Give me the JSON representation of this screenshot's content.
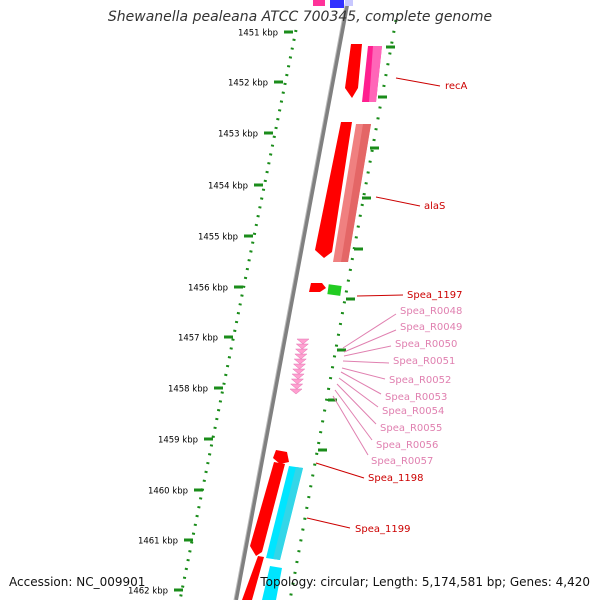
{
  "title": "Shewanella pealeana ATCC 700345, complete genome",
  "accession": "Accession: NC_009901",
  "summary": "Topology: circular; Length: 5,174,581 bp; Genes: 4,420",
  "colors": {
    "ruler_tick": "#1a8c1a",
    "backbone": "#808080",
    "label_red": "#cc0000",
    "label_pink": "#e080b0"
  },
  "scale": {
    "ticks": [
      "1451 kbp",
      "1452 kbp",
      "1453 kbp",
      "1454 kbp",
      "1455 kbp",
      "1456 kbp",
      "1457 kbp",
      "1458 kbp",
      "1459 kbp",
      "1460 kbp",
      "1461 kbp",
      "1462 kbp"
    ]
  },
  "gene_labels": [
    {
      "id": "recA",
      "text": "recA",
      "color": "red"
    },
    {
      "id": "alaS",
      "text": "alaS",
      "color": "red"
    },
    {
      "id": "spea-1197",
      "text": "Spea_1197",
      "color": "red"
    },
    {
      "id": "spea-r0048",
      "text": "Spea_R0048",
      "color": "pink"
    },
    {
      "id": "spea-r0049",
      "text": "Spea_R0049",
      "color": "pink"
    },
    {
      "id": "spea-r0050",
      "text": "Spea_R0050",
      "color": "pink"
    },
    {
      "id": "spea-r0051",
      "text": "Spea_R0051",
      "color": "pink"
    },
    {
      "id": "spea-r0052",
      "text": "Spea_R0052",
      "color": "pink"
    },
    {
      "id": "spea-r0053",
      "text": "Spea_R0053",
      "color": "pink"
    },
    {
      "id": "spea-r0054",
      "text": "Spea_R0054",
      "color": "pink"
    },
    {
      "id": "spea-r0055",
      "text": "Spea_R0055",
      "color": "pink"
    },
    {
      "id": "spea-r0056",
      "text": "Spea_R0056",
      "color": "pink"
    },
    {
      "id": "spea-r0057",
      "text": "Spea_R0057",
      "color": "pink"
    },
    {
      "id": "spea-1198",
      "text": "Spea_1198",
      "color": "red"
    },
    {
      "id": "spea-1199",
      "text": "Spea_1199",
      "color": "red"
    }
  ]
}
